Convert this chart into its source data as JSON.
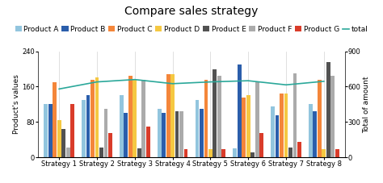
{
  "title": "Compare sales strategy",
  "ylabel_left": "Product's values",
  "ylabel_right": "Total of amount",
  "categories": [
    "Strategy 1",
    "Strategy 2",
    "Strategy 3",
    "Strategy 4",
    "Strategy 5",
    "Strategy 6",
    "Strategy 7",
    "Strategy 8"
  ],
  "products": [
    "Product A",
    "Product B",
    "Product C",
    "Product D",
    "Product E",
    "Product F",
    "Product G"
  ],
  "colors": {
    "Product A": "#92C5DE",
    "Product B": "#2B5EAB",
    "Product C": "#F4863A",
    "Product D": "#F5C842",
    "Product E": "#525252",
    "Product F": "#ABABAB",
    "Product G": "#D93C2A",
    "total": "#2BA89A"
  },
  "data": {
    "Product A": [
      120,
      130,
      140,
      110,
      130,
      20,
      115,
      120
    ],
    "Product B": [
      120,
      140,
      100,
      100,
      110,
      210,
      95,
      105
    ],
    "Product C": [
      170,
      175,
      185,
      188,
      175,
      135,
      145,
      175
    ],
    "Product D": [
      85,
      180,
      175,
      188,
      18,
      140,
      145,
      18
    ],
    "Product E": [
      65,
      22,
      20,
      105,
      200,
      12,
      22,
      215
    ],
    "Product F": [
      22,
      110,
      175,
      105,
      185,
      170,
      190,
      185
    ],
    "Product G": [
      120,
      55,
      70,
      18,
      18,
      55,
      35,
      18
    ]
  },
  "total": [
    580,
    640,
    660,
    625,
    640,
    650,
    615,
    645
  ],
  "ylim_left": [
    0,
    240
  ],
  "ylim_right": [
    0,
    900
  ],
  "yticks_left": [
    0,
    80,
    160,
    240
  ],
  "yticks_right": [
    0,
    300,
    600,
    900
  ],
  "background_color": "#FFFFFF",
  "title_fontsize": 10,
  "legend_fontsize": 6.5,
  "axis_fontsize": 6.5,
  "tick_fontsize": 6
}
